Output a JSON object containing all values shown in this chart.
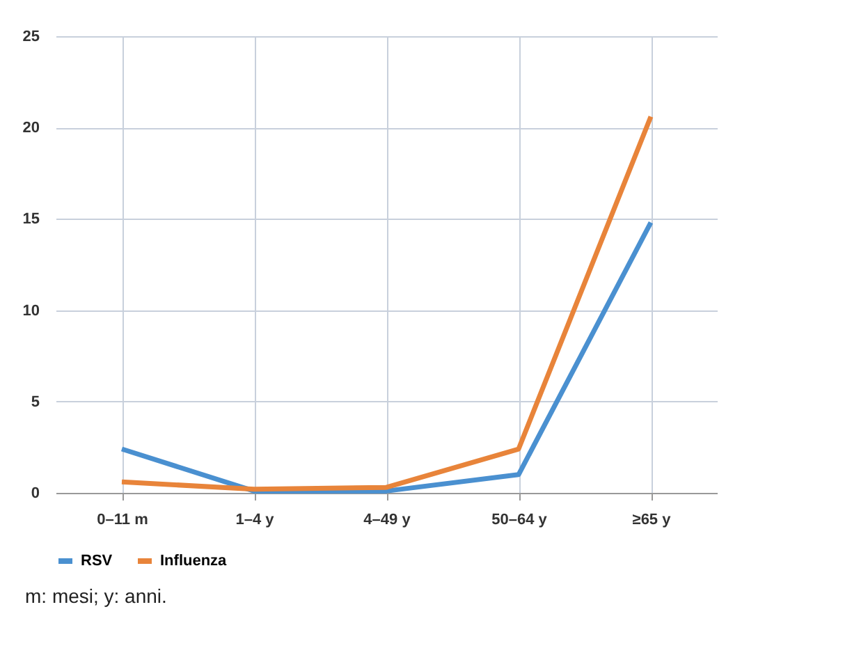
{
  "chart_data": {
    "type": "line",
    "categories": [
      "0–11 m",
      "1–4 y",
      "4–49 y",
      "50–64 y",
      "≥65 y"
    ],
    "series": [
      {
        "name": "RSV",
        "color": "#4a90d0",
        "values": [
          2.4,
          0.1,
          0.1,
          1.0,
          14.8
        ]
      },
      {
        "name": "Influenza",
        "color": "#e8843a",
        "values": [
          0.6,
          0.2,
          0.3,
          2.4,
          20.6
        ]
      }
    ],
    "ylim": [
      0,
      25
    ],
    "yticks": [
      0,
      5,
      10,
      15,
      20,
      25
    ],
    "grid": true,
    "legend": "bottom",
    "marker": "none",
    "line_style": "solid",
    "annotations": [
      "m: mesi; y: anni."
    ]
  }
}
